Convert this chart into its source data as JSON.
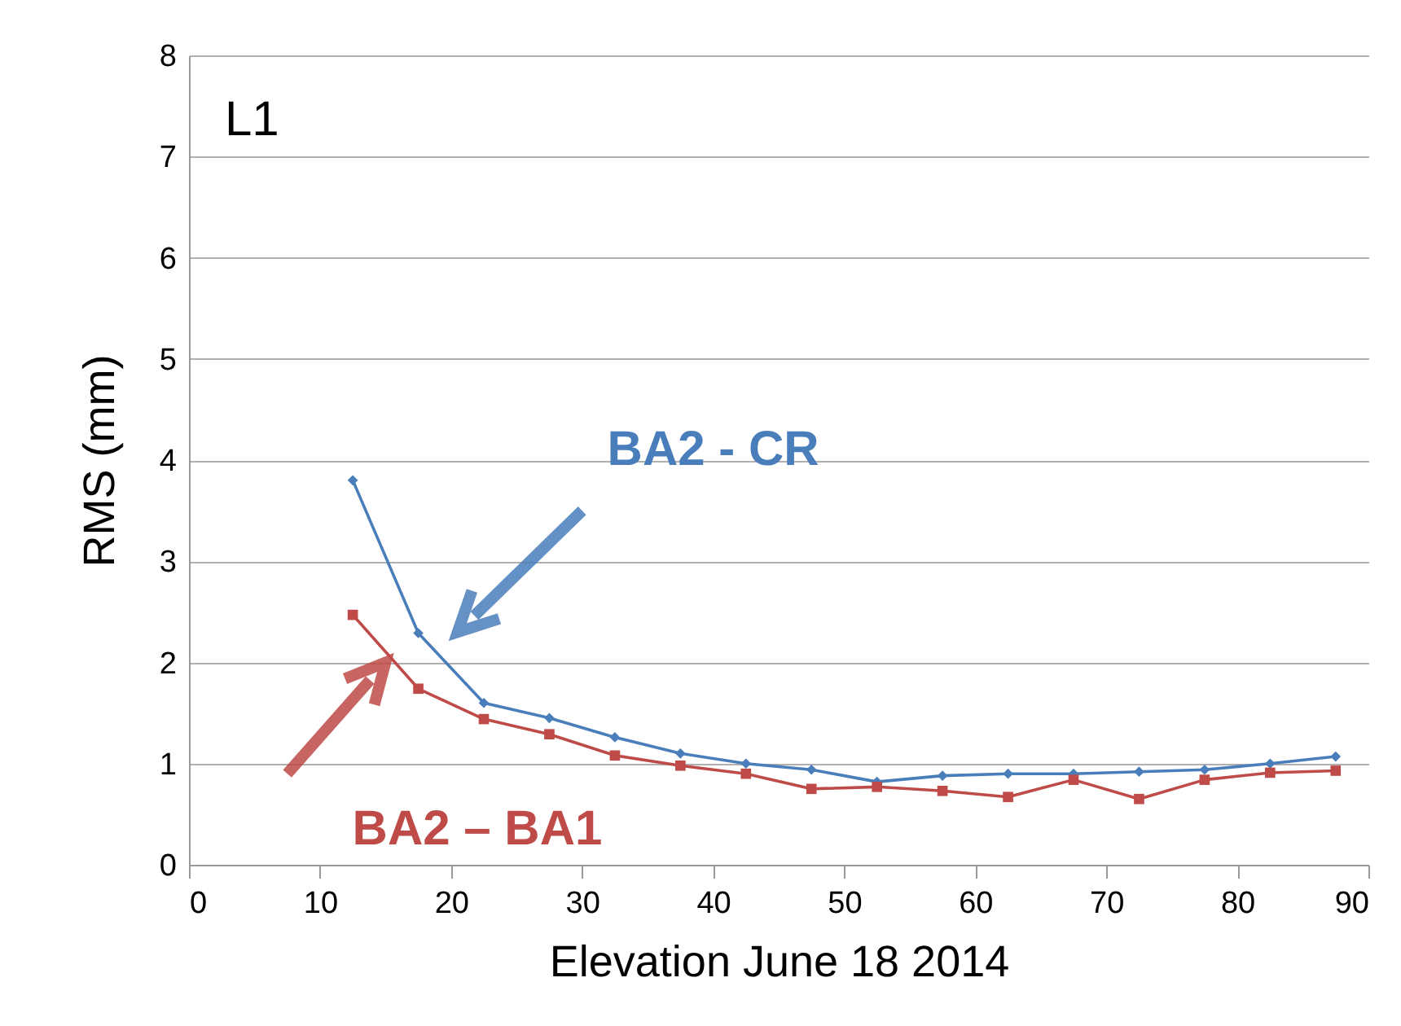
{
  "chart_data": {
    "type": "line",
    "xlabel": "Elevation  June 18 2014",
    "ylabel": "RMS (mm)",
    "annotations": [
      "L1"
    ],
    "x": [
      12.5,
      17.5,
      22.5,
      27.5,
      32.5,
      37.5,
      42.5,
      47.5,
      52.5,
      57.5,
      62.5,
      67.5,
      72.5,
      77.5,
      82.5,
      87.5
    ],
    "series": [
      {
        "name": "BA2 - CR",
        "color": "#4a7ebb",
        "marker": "diamond",
        "values": [
          3.8,
          2.29,
          1.6,
          1.45,
          1.26,
          1.1,
          1.0,
          0.94,
          0.82,
          0.88,
          0.9,
          0.9,
          0.92,
          0.94,
          1.0,
          1.07
        ]
      },
      {
        "name": "BA2 – BA1",
        "color": "#be4b48",
        "marker": "square",
        "values": [
          2.47,
          1.74,
          1.44,
          1.29,
          1.08,
          0.98,
          0.9,
          0.75,
          0.77,
          0.73,
          0.67,
          0.84,
          0.65,
          0.84,
          0.91,
          0.93
        ]
      }
    ],
    "xlim": [
      0,
      90
    ],
    "xticks": [
      0,
      10,
      20,
      30,
      40,
      50,
      60,
      70,
      80,
      90
    ],
    "ylim": [
      0,
      8
    ],
    "yticks": [
      0,
      1,
      2,
      3,
      4,
      5,
      6,
      7,
      8
    ],
    "grid": "y"
  }
}
